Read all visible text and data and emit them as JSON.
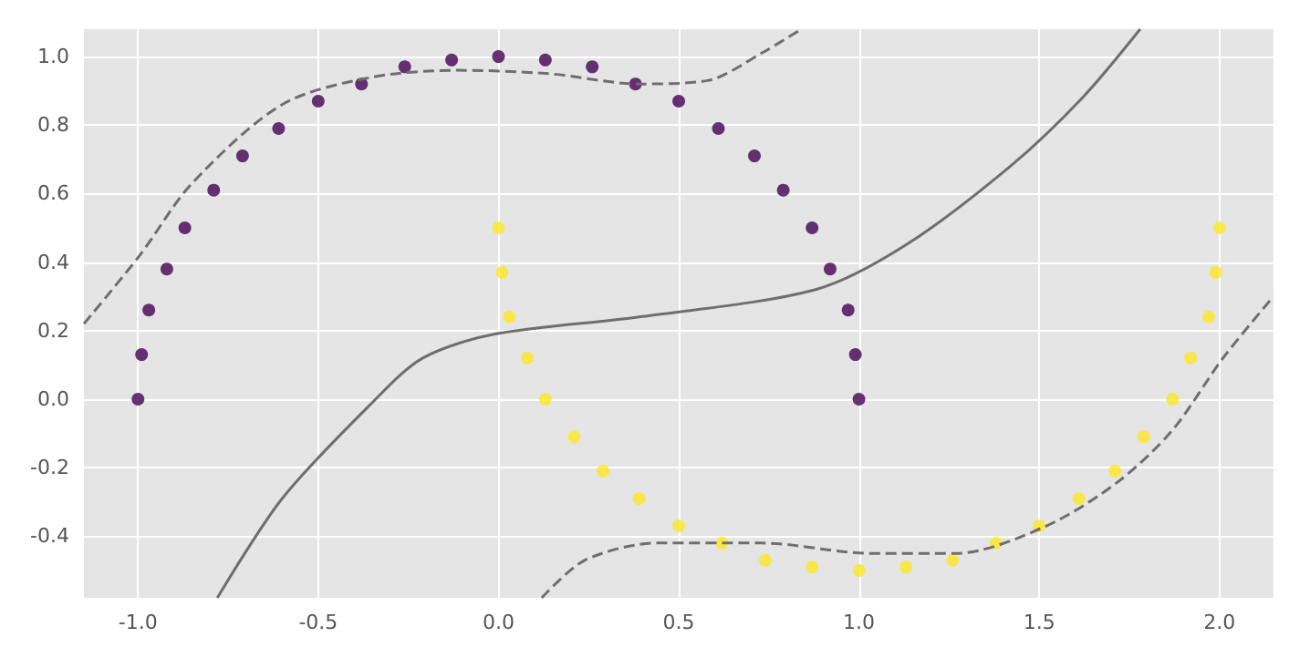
{
  "chart_data": {
    "type": "scatter",
    "xlim": [
      -1.15,
      2.15
    ],
    "ylim": [
      -0.58,
      1.08
    ],
    "xticks": [
      {
        "value": -1,
        "label": "-1.0"
      },
      {
        "value": -0.5,
        "label": "-0.5"
      },
      {
        "value": 0,
        "label": "0.0"
      },
      {
        "value": 0.5,
        "label": "0.5"
      },
      {
        "value": 1,
        "label": "1.0"
      },
      {
        "value": 1.5,
        "label": "1.5"
      },
      {
        "value": 2,
        "label": "2.0"
      }
    ],
    "yticks": [
      {
        "value": -0.4,
        "label": "-0.4"
      },
      {
        "value": -0.2,
        "label": "-0.2"
      },
      {
        "value": 0,
        "label": "0.0"
      },
      {
        "value": 0.2,
        "label": "0.2"
      },
      {
        "value": 0.4,
        "label": "0.4"
      },
      {
        "value": 0.6,
        "label": "0.6"
      },
      {
        "value": 0.8,
        "label": "0.8"
      },
      {
        "value": 1,
        "label": "1.0"
      }
    ],
    "grid": true,
    "marker": "circle",
    "series": [
      {
        "color": "#440154",
        "x": [
          1,
          0.99,
          0.97,
          0.92,
          0.87,
          0.79,
          0.71,
          0.61,
          0.5,
          0.38,
          0.26,
          0.13,
          0,
          -0.13,
          -0.26,
          -0.38,
          -0.5,
          -0.61,
          -0.71,
          -0.79,
          -0.87,
          -0.92,
          -0.97,
          -0.99,
          -1
        ],
        "values": [
          0,
          0.13,
          0.26,
          0.38,
          0.5,
          0.61,
          0.71,
          0.79,
          0.87,
          0.92,
          0.97,
          0.99,
          1,
          0.99,
          0.97,
          0.92,
          0.87,
          0.79,
          0.71,
          0.61,
          0.5,
          0.38,
          0.26,
          0.13,
          0
        ]
      },
      {
        "color": "#fde725",
        "x": [
          0,
          0.01,
          0.03,
          0.08,
          0.13,
          0.21,
          0.29,
          0.39,
          0.5,
          0.62,
          0.74,
          0.87,
          1,
          1.13,
          1.26,
          1.38,
          1.5,
          1.61,
          1.71,
          1.79,
          1.87,
          1.92,
          1.97,
          1.99,
          2
        ],
        "values": [
          0.5,
          0.37,
          0.24,
          0.12,
          0,
          -0.11,
          -0.21,
          -0.29,
          -0.37,
          -0.42,
          -0.47,
          -0.49,
          -0.5,
          -0.49,
          -0.47,
          -0.42,
          -0.37,
          -0.29,
          -0.21,
          -0.11,
          0,
          0.12,
          0.24,
          0.37,
          0.5
        ]
      },
      {
        "type": "line",
        "color": "#6e6e6e",
        "line_style": "solid",
        "marker": "none",
        "x": [
          -0.78,
          -0.6,
          -0.35,
          -0.21,
          -0.01,
          0.39,
          0.88,
          1.13,
          1.42,
          1.62,
          1.78
        ],
        "values": [
          -0.58,
          -0.29,
          -0.01,
          0.12,
          0.19,
          0.24,
          0.32,
          0.45,
          0.68,
          0.88,
          1.08
        ]
      },
      {
        "type": "line",
        "color": "#6e6e6e",
        "line_style": "dashed",
        "marker": "none",
        "x": [
          -1.15,
          -0.995,
          -0.85,
          -0.6,
          -0.35,
          -0.11,
          0.14,
          0.39,
          0.58,
          0.73,
          0.84
        ],
        "values": [
          0.22,
          0.42,
          0.63,
          0.86,
          0.94,
          0.96,
          0.95,
          0.92,
          0.93,
          1.01,
          1.08
        ]
      },
      {
        "type": "line",
        "color": "#6e6e6e",
        "line_style": "dashed",
        "marker": "none",
        "x": [
          0.12,
          0.24,
          0.44,
          0.73,
          1.03,
          1.27,
          1.52,
          1.72,
          1.87,
          2.01,
          2.15
        ],
        "values": [
          -0.58,
          -0.47,
          -0.42,
          -0.42,
          -0.45,
          -0.45,
          -0.37,
          -0.24,
          -0.09,
          0.12,
          0.3
        ]
      }
    ]
  }
}
